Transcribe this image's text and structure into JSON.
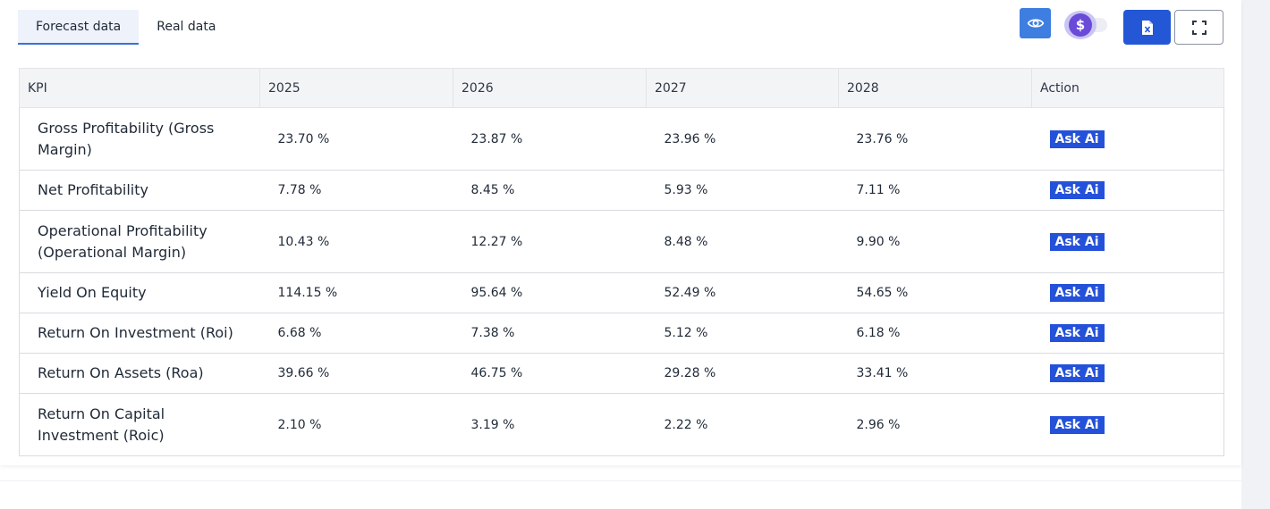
{
  "tabs": [
    {
      "label": "Forecast data",
      "active": true
    },
    {
      "label": "Real data",
      "active": false
    }
  ],
  "toolbar": {
    "eye_icon": "eye-icon",
    "currency_symbol": "$",
    "excel_icon": "excel-file-icon",
    "fullscreen_icon": "fullscreen-icon"
  },
  "table": {
    "headers": [
      "KPI",
      "2025",
      "2026",
      "2027",
      "2028",
      "Action"
    ],
    "rows": [
      {
        "kpi": "Gross Profitability (Gross Margin)",
        "values": [
          "23.70 %",
          "23.87 %",
          "23.96 %",
          "23.76 %"
        ],
        "action": "Ask Ai"
      },
      {
        "kpi": "Net Profitability",
        "values": [
          "7.78 %",
          "8.45 %",
          "5.93 %",
          "7.11 %"
        ],
        "action": "Ask Ai"
      },
      {
        "kpi": "Operational Profitability (Operational Margin)",
        "values": [
          "10.43 %",
          "12.27 %",
          "8.48 %",
          "9.90 %"
        ],
        "action": "Ask Ai"
      },
      {
        "kpi": "Yield On Equity",
        "values": [
          "114.15 %",
          "95.64 %",
          "52.49 %",
          "54.65 %"
        ],
        "action": "Ask Ai"
      },
      {
        "kpi": "Return On Investment (Roi)",
        "values": [
          "6.68 %",
          "7.38 %",
          "5.12 %",
          "6.18 %"
        ],
        "action": "Ask Ai"
      },
      {
        "kpi": "Return On Assets (Roa)",
        "values": [
          "39.66 %",
          "46.75 %",
          "29.28 %",
          "33.41 %"
        ],
        "action": "Ask Ai"
      },
      {
        "kpi": "Return On Capital Investment (Roic)",
        "values": [
          "2.10 %",
          "3.19 %",
          "2.22 %",
          "2.96 %"
        ],
        "action": "Ask Ai"
      }
    ]
  },
  "colors": {
    "primary": "#2457d6",
    "eye_button": "#3d7ee0",
    "tab_active_bg": "#eef2fb",
    "coin": "#6a4bd8"
  }
}
